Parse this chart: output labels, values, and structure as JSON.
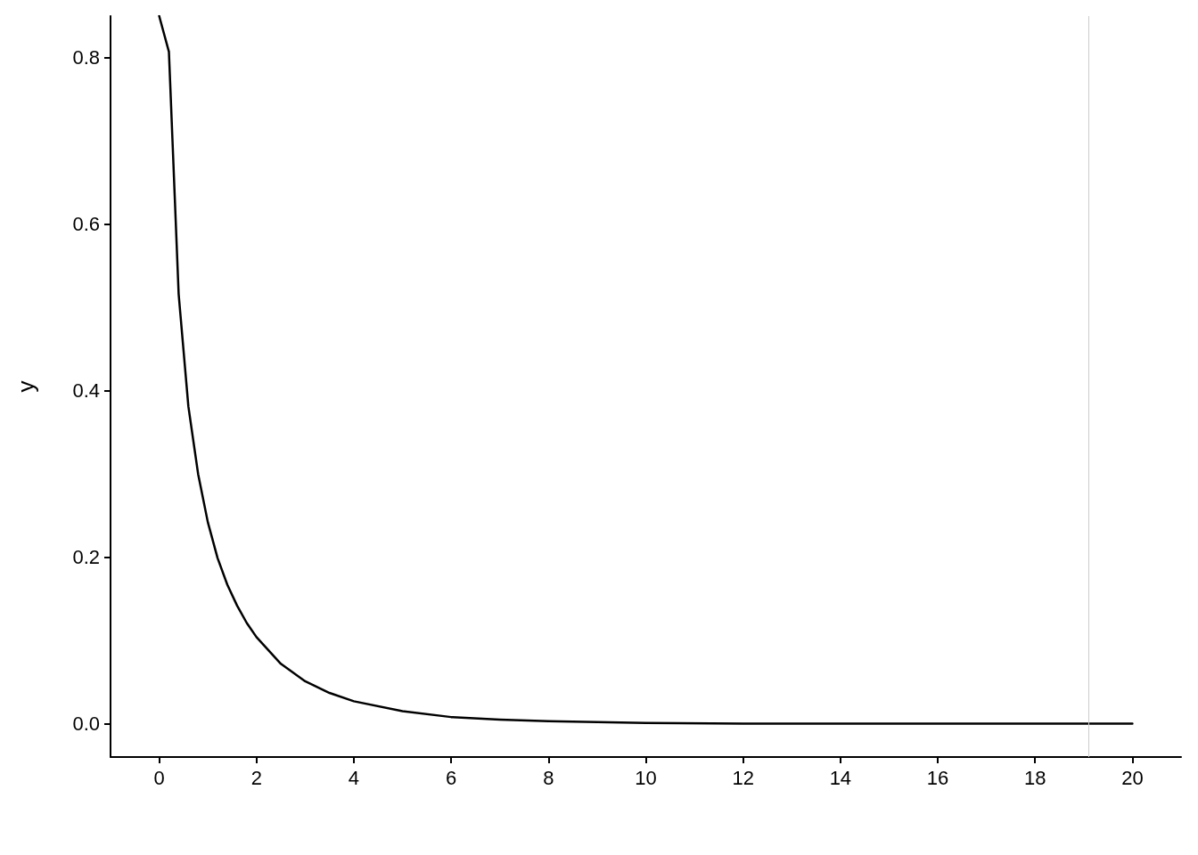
{
  "chart_data": {
    "type": "line",
    "ylabel": "y",
    "x": [
      0,
      0.2,
      0.4,
      0.6,
      0.8,
      1,
      1.2,
      1.4,
      1.6,
      1.8,
      2,
      2.5,
      3,
      3.5,
      4,
      5,
      6,
      7,
      8,
      10,
      12,
      14,
      16,
      18,
      20
    ],
    "series": [
      {
        "color": "#000000",
        "values": [
          0.85,
          0.807,
          0.516,
          0.381,
          0.3,
          0.242,
          0.199,
          0.167,
          0.142,
          0.121,
          0.104,
          0.072,
          0.051,
          0.037,
          0.027,
          0.015,
          0.008,
          0.005,
          0.003,
          0.001,
          0,
          0,
          0,
          0,
          0
        ]
      }
    ],
    "xlim": [
      -1,
      21
    ],
    "xticks": [
      0,
      2,
      4,
      6,
      8,
      10,
      12,
      14,
      16,
      18,
      20
    ],
    "ylim": [
      -0.04,
      0.85
    ],
    "yticks": [
      {
        "value": 0,
        "label": "0.0"
      },
      {
        "value": 0.2,
        "label": "0.2"
      },
      {
        "value": 0.4,
        "label": "0.4"
      },
      {
        "value": 0.6,
        "label": "0.6"
      },
      {
        "value": 0.8,
        "label": "0.8"
      }
    ],
    "ref_lines": [
      {
        "axis": "x",
        "value": 19.1,
        "color": "#cccccc"
      }
    ],
    "grid": false,
    "marker": "none",
    "line_style": "solid"
  }
}
